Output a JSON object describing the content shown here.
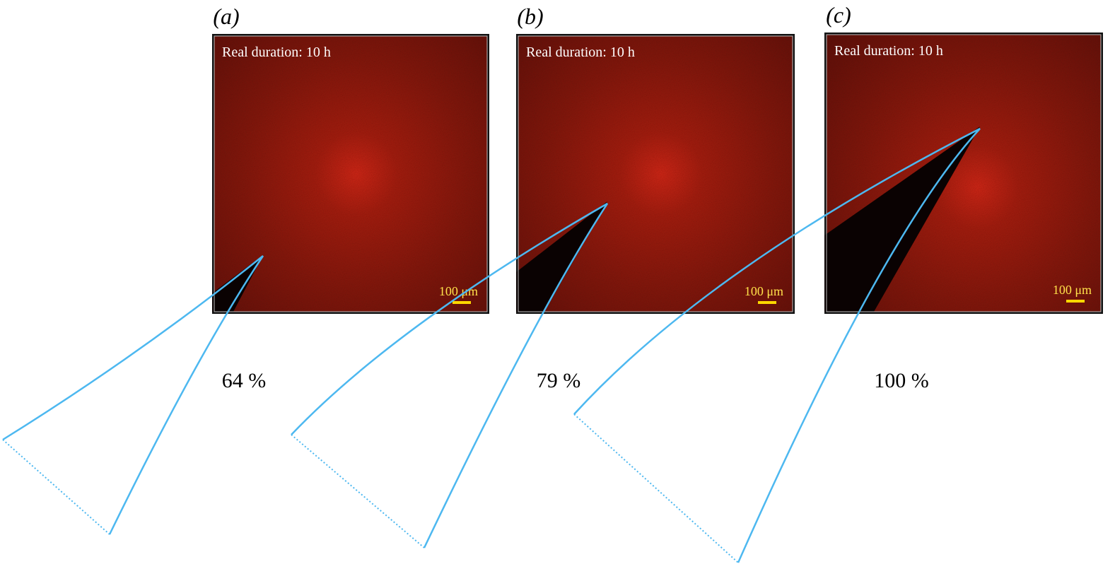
{
  "panels": [
    {
      "label": "(a)",
      "caption": "Real duration: 10 h",
      "scale": "100 μm",
      "percent": "64 %"
    },
    {
      "label": "(b)",
      "caption": "Real duration: 10 h",
      "scale": "100 μm",
      "percent": "79 %"
    },
    {
      "label": "(c)",
      "caption": "Real duration: 10 h",
      "scale": "100 μm",
      "percent": "100 %"
    }
  ]
}
